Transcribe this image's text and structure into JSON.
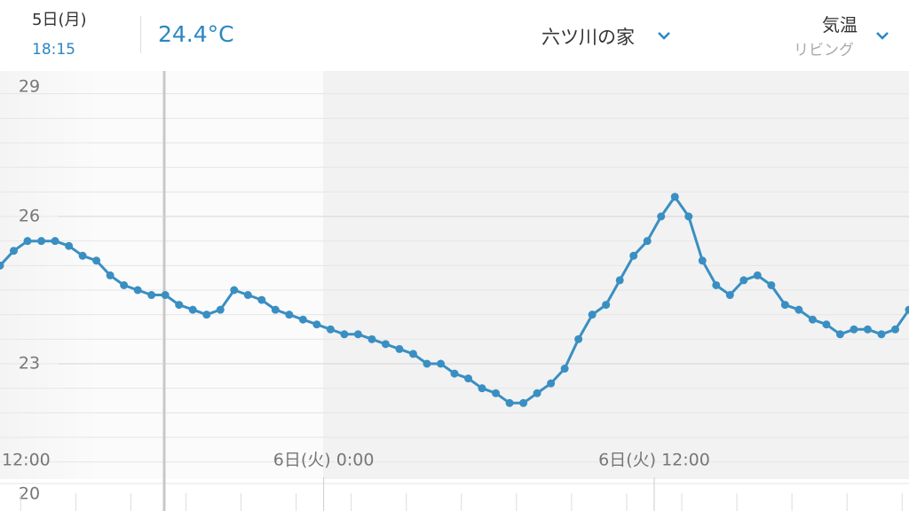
{
  "header": {
    "date": "5日(月)",
    "time": "18:15",
    "current_value": "24.4°C",
    "location": "六ツ川の家",
    "metric": "気温",
    "room": "リビング"
  },
  "chart_data": {
    "type": "line",
    "color": "#3a8fc2",
    "x": [
      12.25,
      12.75,
      13.25,
      13.75,
      14.25,
      14.75,
      15.25,
      15.75,
      16.25,
      16.75,
      17.25,
      17.75,
      18.25,
      18.75,
      19.25,
      19.75,
      20.25,
      20.75,
      21.25,
      21.75,
      22.25,
      22.75,
      23.25,
      23.75,
      24.25,
      24.75,
      25.25,
      25.75,
      26.25,
      26.75,
      27.25,
      27.75,
      28.25,
      28.75,
      29.25,
      29.75,
      30.25,
      30.75,
      31.25,
      31.75,
      32.25,
      32.75,
      33.25,
      33.75,
      34.25,
      34.75,
      35.25,
      35.75,
      36.25,
      36.75,
      37.25,
      37.75,
      38.25,
      38.75,
      39.25,
      39.75,
      40.25,
      40.75,
      41.25,
      41.75,
      42.25,
      42.75,
      43.25,
      43.75,
      44.25,
      44.75,
      45.25
    ],
    "values": [
      25.0,
      25.3,
      25.5,
      25.5,
      25.5,
      25.4,
      25.2,
      25.1,
      24.8,
      24.6,
      24.5,
      24.4,
      24.4,
      24.2,
      24.1,
      24.0,
      24.1,
      24.5,
      24.4,
      24.3,
      24.1,
      24.0,
      23.9,
      23.8,
      23.7,
      23.6,
      23.6,
      23.5,
      23.4,
      23.3,
      23.2,
      23.0,
      23.0,
      22.8,
      22.7,
      22.5,
      22.4,
      22.2,
      22.2,
      22.4,
      22.6,
      22.9,
      23.5,
      24.0,
      24.2,
      24.7,
      25.2,
      25.5,
      26.0,
      26.4,
      26.0,
      25.1,
      24.6,
      24.4,
      24.7,
      24.8,
      24.6,
      24.2,
      24.1,
      23.9,
      23.8,
      23.6,
      23.7,
      23.7,
      23.6,
      23.7,
      24.1
    ],
    "xlim": [
      12.25,
      45.25
    ],
    "xticks": [
      {
        "value": 12,
        "label": "12:00"
      },
      {
        "value": 24,
        "label": "6日(火) 0:00"
      },
      {
        "value": 36,
        "label": "6日(火) 12:00"
      }
    ],
    "ylim": [
      20,
      29
    ],
    "yticks": [
      20,
      23,
      26,
      29
    ],
    "grid": true
  }
}
